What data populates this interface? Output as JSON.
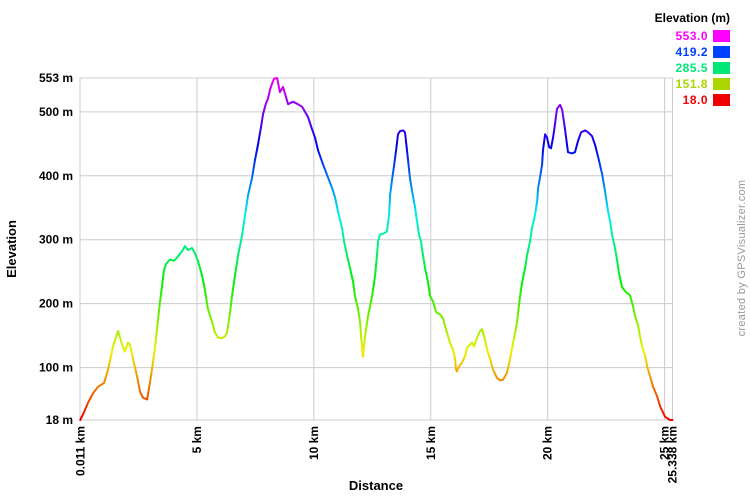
{
  "credit": "created by GPSVisualizer.com",
  "colors": {
    "background": "#ffffff",
    "grid": "#cccccc",
    "plot_border": "#cccccc",
    "tick_text": "#000000",
    "credit_text": "#999999"
  },
  "chart_data": {
    "type": "line",
    "title": "",
    "xlabel": "Distance",
    "ylabel": "Elevation",
    "x_unit": "km",
    "y_unit": "m",
    "xlim": [
      0,
      25.338
    ],
    "ylim": [
      18,
      553
    ],
    "grid": true,
    "x_ticks": [
      {
        "value": 0.011,
        "label": "0.011 km"
      },
      {
        "value": 5,
        "label": "5 km"
      },
      {
        "value": 10,
        "label": "10 km"
      },
      {
        "value": 15,
        "label": "15 km"
      },
      {
        "value": 20,
        "label": "20 km"
      },
      {
        "value": 25,
        "label": "25 km"
      },
      {
        "value": 25.338,
        "label": "25.338 km"
      }
    ],
    "y_ticks": [
      {
        "value": 18,
        "label": "18 m"
      },
      {
        "value": 100,
        "label": "100 m"
      },
      {
        "value": 200,
        "label": "200 m"
      },
      {
        "value": 300,
        "label": "300 m"
      },
      {
        "value": 400,
        "label": "400 m"
      },
      {
        "value": 500,
        "label": "500 m"
      },
      {
        "value": 553,
        "label": "553 m"
      }
    ],
    "grid_x_km": [
      5,
      10,
      15,
      20,
      25
    ],
    "grid_y_m": [
      100,
      200,
      300,
      400,
      500
    ],
    "legend": {
      "title": "Elevation (m)",
      "position": "top-right",
      "entries": [
        {
          "value": "553.0",
          "color": "#ff00ff"
        },
        {
          "value": "419.2",
          "color": "#0040ff"
        },
        {
          "value": "285.5",
          "color": "#00e678"
        },
        {
          "value": "151.8",
          "color": "#aad500"
        },
        {
          "value": "18.0",
          "color": "#ee0000"
        }
      ]
    },
    "color_scale": {
      "style": "rainbow-by-elevation",
      "hue_min": 0,
      "hue_max": 300,
      "saturation": 100,
      "lightness": 47
    },
    "series": [
      {
        "name": "elevation-profile",
        "points": [
          [
            0.01,
            18
          ],
          [
            0.17,
            30
          ],
          [
            0.34,
            45
          ],
          [
            0.56,
            60
          ],
          [
            0.77,
            70
          ],
          [
            1.03,
            76
          ],
          [
            1.2,
            97
          ],
          [
            1.41,
            133
          ],
          [
            1.58,
            152
          ],
          [
            1.63,
            157
          ],
          [
            1.8,
            136
          ],
          [
            1.92,
            125
          ],
          [
            2.05,
            139
          ],
          [
            2.14,
            136
          ],
          [
            2.27,
            113
          ],
          [
            2.44,
            86
          ],
          [
            2.57,
            62
          ],
          [
            2.69,
            53
          ],
          [
            2.87,
            50
          ],
          [
            2.99,
            76
          ],
          [
            3.08,
            97
          ],
          [
            3.21,
            133
          ],
          [
            3.34,
            176
          ],
          [
            3.42,
            203
          ],
          [
            3.51,
            228
          ],
          [
            3.59,
            252
          ],
          [
            3.68,
            262
          ],
          [
            3.85,
            269
          ],
          [
            4.02,
            267
          ],
          [
            4.19,
            274
          ],
          [
            4.36,
            282
          ],
          [
            4.49,
            290
          ],
          [
            4.62,
            284
          ],
          [
            4.79,
            287
          ],
          [
            4.92,
            279
          ],
          [
            5.05,
            266
          ],
          [
            5.22,
            244
          ],
          [
            5.35,
            220
          ],
          [
            5.47,
            192
          ],
          [
            5.65,
            171
          ],
          [
            5.77,
            155
          ],
          [
            5.9,
            147
          ],
          [
            6.07,
            146
          ],
          [
            6.2,
            149
          ],
          [
            6.29,
            155
          ],
          [
            6.42,
            187
          ],
          [
            6.5,
            212
          ],
          [
            6.63,
            244
          ],
          [
            6.76,
            276
          ],
          [
            6.93,
            307
          ],
          [
            7.06,
            339
          ],
          [
            7.19,
            370
          ],
          [
            7.36,
            397
          ],
          [
            7.48,
            424
          ],
          [
            7.61,
            449
          ],
          [
            7.74,
            476
          ],
          [
            7.83,
            497
          ],
          [
            7.95,
            513
          ],
          [
            8.04,
            521
          ],
          [
            8.13,
            535
          ],
          [
            8.21,
            544
          ],
          [
            8.3,
            552
          ],
          [
            8.43,
            553
          ],
          [
            8.55,
            531
          ],
          [
            8.68,
            539
          ],
          [
            8.9,
            512
          ],
          [
            9.11,
            516
          ],
          [
            9.32,
            512
          ],
          [
            9.5,
            508
          ],
          [
            9.75,
            492
          ],
          [
            9.92,
            473
          ],
          [
            10.05,
            460
          ],
          [
            10.18,
            440
          ],
          [
            10.39,
            418
          ],
          [
            10.61,
            397
          ],
          [
            10.78,
            381
          ],
          [
            10.91,
            366
          ],
          [
            11.03,
            345
          ],
          [
            11.21,
            318
          ],
          [
            11.29,
            298
          ],
          [
            11.42,
            276
          ],
          [
            11.55,
            255
          ],
          [
            11.68,
            234
          ],
          [
            11.76,
            212
          ],
          [
            11.89,
            192
          ],
          [
            11.98,
            171
          ],
          [
            12.02,
            149
          ],
          [
            12.1,
            117
          ],
          [
            12.19,
            149
          ],
          [
            12.32,
            181
          ],
          [
            12.49,
            212
          ],
          [
            12.62,
            244
          ],
          [
            12.7,
            276
          ],
          [
            12.75,
            298
          ],
          [
            12.83,
            308
          ],
          [
            13.0,
            310
          ],
          [
            13.13,
            313
          ],
          [
            13.22,
            340
          ],
          [
            13.26,
            370
          ],
          [
            13.34,
            392
          ],
          [
            13.43,
            415
          ],
          [
            13.52,
            440
          ],
          [
            13.6,
            465
          ],
          [
            13.69,
            470
          ],
          [
            13.82,
            471
          ],
          [
            13.9,
            468
          ],
          [
            14.03,
            424
          ],
          [
            14.11,
            397
          ],
          [
            14.2,
            376
          ],
          [
            14.33,
            350
          ],
          [
            14.41,
            329
          ],
          [
            14.5,
            307
          ],
          [
            14.58,
            298
          ],
          [
            14.67,
            276
          ],
          [
            14.76,
            255
          ],
          [
            14.88,
            234
          ],
          [
            14.97,
            212
          ],
          [
            15.1,
            203
          ],
          [
            15.23,
            187
          ],
          [
            15.4,
            183
          ],
          [
            15.53,
            176
          ],
          [
            15.61,
            165
          ],
          [
            15.74,
            149
          ],
          [
            15.82,
            139
          ],
          [
            15.95,
            128
          ],
          [
            16.04,
            113
          ],
          [
            16.08,
            97
          ],
          [
            16.12,
            94
          ],
          [
            16.21,
            102
          ],
          [
            16.34,
            108
          ],
          [
            16.47,
            118
          ],
          [
            16.55,
            131
          ],
          [
            16.68,
            136
          ],
          [
            16.77,
            139
          ],
          [
            16.85,
            133
          ],
          [
            16.98,
            147
          ],
          [
            17.11,
            157
          ],
          [
            17.19,
            160
          ],
          [
            17.32,
            144
          ],
          [
            17.41,
            128
          ],
          [
            17.54,
            113
          ],
          [
            17.66,
            97
          ],
          [
            17.83,
            84
          ],
          [
            17.96,
            80
          ],
          [
            18.09,
            81
          ],
          [
            18.26,
            92
          ],
          [
            18.39,
            113
          ],
          [
            18.52,
            139
          ],
          [
            18.61,
            155
          ],
          [
            18.69,
            171
          ],
          [
            18.82,
            212
          ],
          [
            18.91,
            234
          ],
          [
            19.03,
            255
          ],
          [
            19.12,
            276
          ],
          [
            19.25,
            298
          ],
          [
            19.33,
            318
          ],
          [
            19.46,
            339
          ],
          [
            19.55,
            361
          ],
          [
            19.59,
            381
          ],
          [
            19.67,
            397
          ],
          [
            19.76,
            418
          ],
          [
            19.8,
            440
          ],
          [
            19.89,
            465
          ],
          [
            19.97,
            460
          ],
          [
            20.06,
            445
          ],
          [
            20.14,
            443
          ],
          [
            20.23,
            460
          ],
          [
            20.31,
            480
          ],
          [
            20.4,
            505
          ],
          [
            20.53,
            511
          ],
          [
            20.62,
            503
          ],
          [
            20.74,
            473
          ],
          [
            20.87,
            437
          ],
          [
            21.04,
            435
          ],
          [
            21.17,
            437
          ],
          [
            21.3,
            455
          ],
          [
            21.43,
            468
          ],
          [
            21.6,
            471
          ],
          [
            21.73,
            468
          ],
          [
            21.9,
            462
          ],
          [
            22.03,
            448
          ],
          [
            22.16,
            429
          ],
          [
            22.33,
            402
          ],
          [
            22.45,
            376
          ],
          [
            22.58,
            345
          ],
          [
            22.67,
            329
          ],
          [
            22.76,
            307
          ],
          [
            22.88,
            287
          ],
          [
            22.97,
            268
          ],
          [
            23.05,
            248
          ],
          [
            23.18,
            226
          ],
          [
            23.35,
            218
          ],
          [
            23.52,
            213
          ],
          [
            23.65,
            196
          ],
          [
            23.74,
            181
          ],
          [
            23.87,
            165
          ],
          [
            23.95,
            149
          ],
          [
            24.04,
            133
          ],
          [
            24.17,
            118
          ],
          [
            24.25,
            102
          ],
          [
            24.38,
            86
          ],
          [
            24.51,
            70
          ],
          [
            24.68,
            55
          ],
          [
            24.81,
            39
          ],
          [
            25.02,
            23
          ],
          [
            25.23,
            18
          ],
          [
            25.34,
            18
          ]
        ]
      }
    ]
  }
}
